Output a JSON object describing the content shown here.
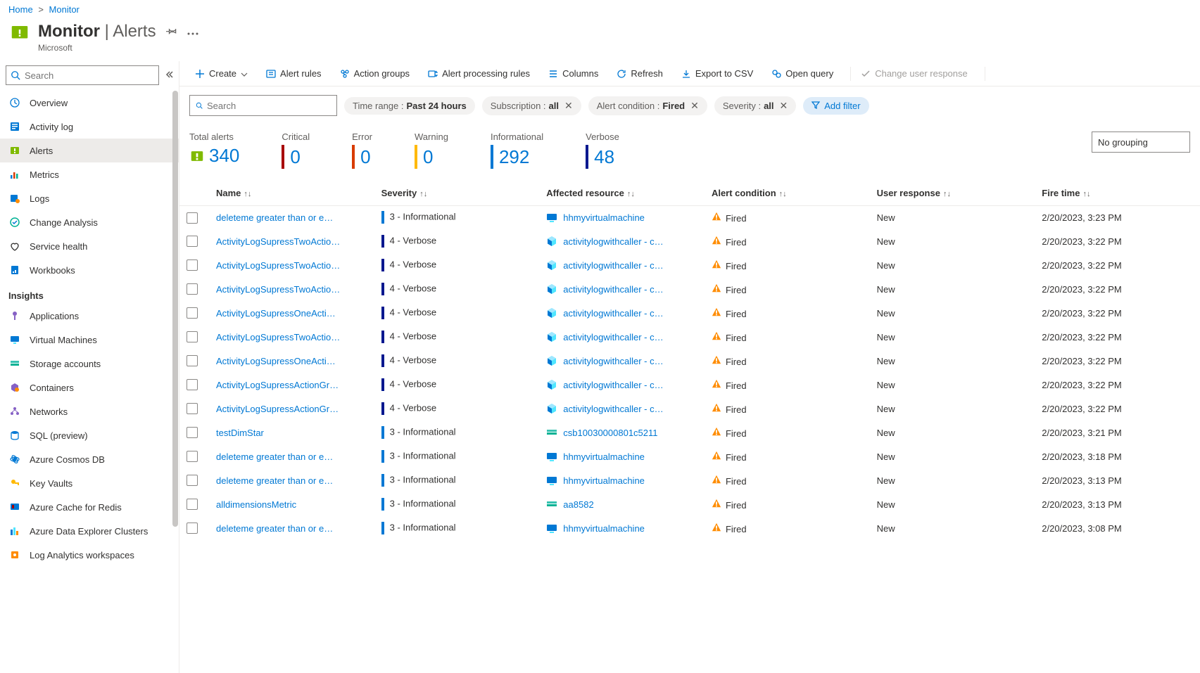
{
  "colors": {
    "link": "#0078d4",
    "critical": "#a80000",
    "error": "#d83b01",
    "warning": "#ffb900",
    "informational": "#0078d4",
    "verbose": "#00188f"
  },
  "breadcrumb": {
    "home": "Home",
    "current": "Monitor"
  },
  "header": {
    "title_main": "Monitor",
    "title_sub": "Alerts",
    "subtitle": "Microsoft"
  },
  "sidebar": {
    "search_placeholder": "Search",
    "items": [
      {
        "label": "Overview",
        "icon": "overview"
      },
      {
        "label": "Activity log",
        "icon": "activitylog"
      },
      {
        "label": "Alerts",
        "icon": "alerts",
        "active": true
      },
      {
        "label": "Metrics",
        "icon": "metrics"
      },
      {
        "label": "Logs",
        "icon": "logs"
      },
      {
        "label": "Change Analysis",
        "icon": "change"
      },
      {
        "label": "Service health",
        "icon": "health"
      },
      {
        "label": "Workbooks",
        "icon": "workbooks"
      }
    ],
    "section": "Insights",
    "insights": [
      {
        "label": "Applications",
        "icon": "applications"
      },
      {
        "label": "Virtual Machines",
        "icon": "vm"
      },
      {
        "label": "Storage accounts",
        "icon": "storage"
      },
      {
        "label": "Containers",
        "icon": "containers"
      },
      {
        "label": "Networks",
        "icon": "networks"
      },
      {
        "label": "SQL (preview)",
        "icon": "sql"
      },
      {
        "label": "Azure Cosmos DB",
        "icon": "cosmos"
      },
      {
        "label": "Key Vaults",
        "icon": "keyvault"
      },
      {
        "label": "Azure Cache for Redis",
        "icon": "redis"
      },
      {
        "label": "Azure Data Explorer Clusters",
        "icon": "adx"
      },
      {
        "label": "Log Analytics workspaces",
        "icon": "law"
      }
    ]
  },
  "toolbar": {
    "create": "Create",
    "alert_rules": "Alert rules",
    "action_groups": "Action groups",
    "processing": "Alert processing rules",
    "columns": "Columns",
    "refresh": "Refresh",
    "export_csv": "Export to CSV",
    "open_query": "Open query",
    "change_resp": "Change user response"
  },
  "filters": {
    "search_placeholder": "Search",
    "pills": [
      {
        "label": "Time range :",
        "value": "Past 24 hours",
        "close": false
      },
      {
        "label": "Subscription :",
        "value": "all",
        "close": true
      },
      {
        "label": "Alert condition :",
        "value": "Fired",
        "close": true
      },
      {
        "label": "Severity :",
        "value": "all",
        "close": true
      }
    ],
    "add_filter": "Add filter"
  },
  "summary": [
    {
      "label": "Total alerts",
      "value": "340",
      "color": null,
      "icon": true
    },
    {
      "label": "Critical",
      "value": "0",
      "color": "#a80000"
    },
    {
      "label": "Error",
      "value": "0",
      "color": "#d83b01"
    },
    {
      "label": "Warning",
      "value": "0",
      "color": "#ffb900"
    },
    {
      "label": "Informational",
      "value": "292",
      "color": "#0078d4"
    },
    {
      "label": "Verbose",
      "value": "48",
      "color": "#00188f"
    }
  ],
  "grouping": "No grouping",
  "columns": {
    "name": "Name",
    "severity": "Severity",
    "resource": "Affected resource",
    "condition": "Alert condition",
    "response": "User response",
    "fire": "Fire time"
  },
  "severity_levels": {
    "3": {
      "text": "3 - Informational",
      "color": "#0078d4"
    },
    "4": {
      "text": "4 - Verbose",
      "color": "#00188f"
    }
  },
  "resource_icons": {
    "vm": {
      "bg": "#0078d4"
    },
    "cube": {
      "bg": "#50e6ff"
    },
    "storage": {
      "bg": "#37c2b1"
    }
  },
  "rows": [
    {
      "name": "deleteme greater than or e…",
      "sev": "3",
      "res": "hhmyvirtualmachine",
      "res_ico": "vm",
      "cond": "Fired",
      "resp": "New",
      "fire": "2/20/2023, 3:23 PM"
    },
    {
      "name": "ActivityLogSupressTwoActio…",
      "sev": "4",
      "res": "activitylogwithcaller - c…",
      "res_ico": "cube",
      "cond": "Fired",
      "resp": "New",
      "fire": "2/20/2023, 3:22 PM"
    },
    {
      "name": "ActivityLogSupressTwoActio…",
      "sev": "4",
      "res": "activitylogwithcaller - c…",
      "res_ico": "cube",
      "cond": "Fired",
      "resp": "New",
      "fire": "2/20/2023, 3:22 PM"
    },
    {
      "name": "ActivityLogSupressTwoActio…",
      "sev": "4",
      "res": "activitylogwithcaller - c…",
      "res_ico": "cube",
      "cond": "Fired",
      "resp": "New",
      "fire": "2/20/2023, 3:22 PM"
    },
    {
      "name": "ActivityLogSupressOneActi…",
      "sev": "4",
      "res": "activitylogwithcaller - c…",
      "res_ico": "cube",
      "cond": "Fired",
      "resp": "New",
      "fire": "2/20/2023, 3:22 PM"
    },
    {
      "name": "ActivityLogSupressTwoActio…",
      "sev": "4",
      "res": "activitylogwithcaller - c…",
      "res_ico": "cube",
      "cond": "Fired",
      "resp": "New",
      "fire": "2/20/2023, 3:22 PM"
    },
    {
      "name": "ActivityLogSupressOneActi…",
      "sev": "4",
      "res": "activitylogwithcaller - c…",
      "res_ico": "cube",
      "cond": "Fired",
      "resp": "New",
      "fire": "2/20/2023, 3:22 PM"
    },
    {
      "name": "ActivityLogSupressActionGr…",
      "sev": "4",
      "res": "activitylogwithcaller - c…",
      "res_ico": "cube",
      "cond": "Fired",
      "resp": "New",
      "fire": "2/20/2023, 3:22 PM"
    },
    {
      "name": "ActivityLogSupressActionGr…",
      "sev": "4",
      "res": "activitylogwithcaller - c…",
      "res_ico": "cube",
      "cond": "Fired",
      "resp": "New",
      "fire": "2/20/2023, 3:22 PM"
    },
    {
      "name": "testDimStar",
      "sev": "3",
      "res": "csb10030000801c5211",
      "res_ico": "storage",
      "cond": "Fired",
      "resp": "New",
      "fire": "2/20/2023, 3:21 PM"
    },
    {
      "name": "deleteme greater than or e…",
      "sev": "3",
      "res": "hhmyvirtualmachine",
      "res_ico": "vm",
      "cond": "Fired",
      "resp": "New",
      "fire": "2/20/2023, 3:18 PM"
    },
    {
      "name": "deleteme greater than or e…",
      "sev": "3",
      "res": "hhmyvirtualmachine",
      "res_ico": "vm",
      "cond": "Fired",
      "resp": "New",
      "fire": "2/20/2023, 3:13 PM"
    },
    {
      "name": "alldimensionsMetric",
      "sev": "3",
      "res": "aa8582",
      "res_ico": "storage",
      "cond": "Fired",
      "resp": "New",
      "fire": "2/20/2023, 3:13 PM"
    },
    {
      "name": "deleteme greater than or e…",
      "sev": "3",
      "res": "hhmyvirtualmachine",
      "res_ico": "vm",
      "cond": "Fired",
      "resp": "New",
      "fire": "2/20/2023, 3:08 PM"
    }
  ]
}
